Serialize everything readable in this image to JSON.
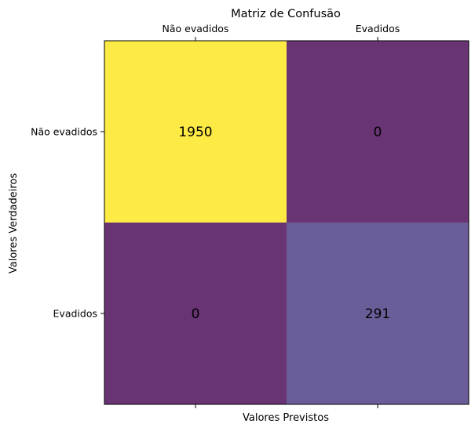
{
  "chart_data": {
    "type": "heatmap",
    "title": "Matriz de Confusão",
    "xlabel": "Valores Previstos",
    "ylabel": "Valores Verdadeiros",
    "x_categories": [
      "Não evadidos",
      "Evadidos"
    ],
    "y_categories": [
      "Não evadidos",
      "Evadidos"
    ],
    "values": [
      [
        1950,
        0
      ],
      [
        0,
        291
      ]
    ],
    "cell_colors": [
      [
        "#fdea45",
        "#683474"
      ],
      [
        "#683474",
        "#6a5d98"
      ]
    ],
    "x_ticks_position": "top",
    "grid": false
  }
}
